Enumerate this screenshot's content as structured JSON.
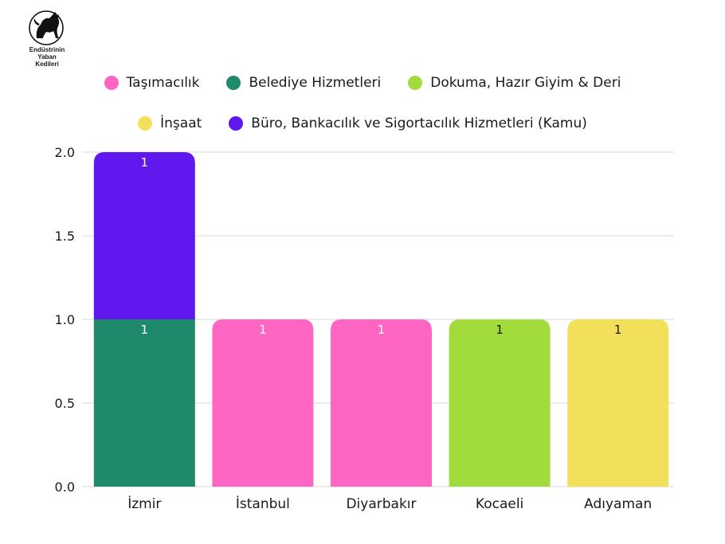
{
  "logo": {
    "lines": [
      "Endüstrinin",
      "Yaban",
      "Kedileri"
    ]
  },
  "chart_data": {
    "type": "bar",
    "stacked": true,
    "categories": [
      "İzmir",
      "İstanbul",
      "Diyarbakır",
      "Kocaeli",
      "Adıyaman"
    ],
    "series": [
      {
        "name": "Taşımacılık",
        "color": "#ff66c4",
        "values": [
          0,
          1,
          1,
          0,
          0
        ]
      },
      {
        "name": "Belediye Hizmetleri",
        "color": "#1f8a6b",
        "values": [
          1,
          0,
          0,
          0,
          0
        ]
      },
      {
        "name": "Dokuma, Hazır Giyim & Deri",
        "color": "#a2dc3c",
        "values": [
          0,
          0,
          0,
          1,
          0
        ]
      },
      {
        "name": "İnşaat",
        "color": "#f2e05a",
        "values": [
          0,
          0,
          0,
          0,
          1
        ]
      },
      {
        "name": "Büro, Bankacılık ve Sigortacılık Hizmetleri (Kamu)",
        "color": "#6118ee",
        "values": [
          1,
          0,
          0,
          0,
          0
        ]
      }
    ],
    "ylim": [
      0,
      2
    ],
    "yticks": [
      "0.0",
      "0.5",
      "1.0",
      "1.5",
      "2.0"
    ],
    "grid": true,
    "legend_position": "top",
    "data_labels": true
  }
}
